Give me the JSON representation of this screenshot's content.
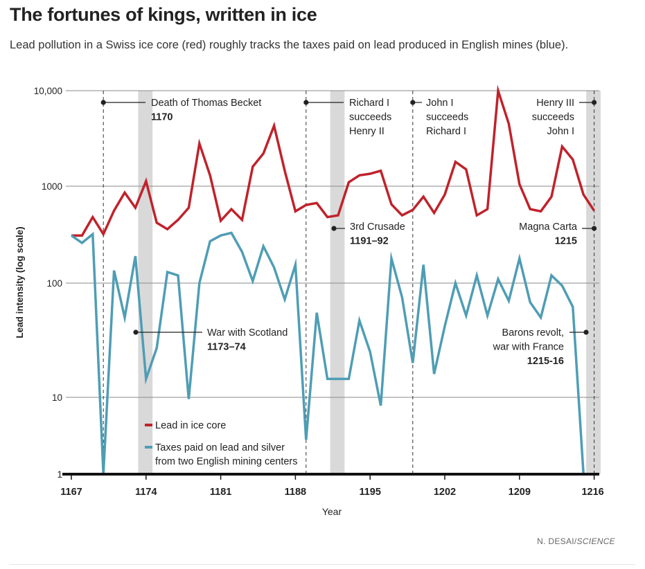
{
  "header": {
    "title": "The fortunes of kings, written in ice",
    "subtitle": "Lead pollution in a Swiss ice core (red) roughly tracks the taxes paid on lead produced in English mines (blue)."
  },
  "credit": {
    "author": "N. DESAI/",
    "publication": "SCIENCE"
  },
  "colors": {
    "lead": "#c0222b",
    "taxes": "#4f9db5",
    "shade": "#d9d9d9"
  },
  "chart_data": {
    "type": "line",
    "xlabel": "Year",
    "ylabel": "Lead intensity (log scale)",
    "yscale": "log",
    "ylim": [
      1,
      10000
    ],
    "xlim": [
      1167,
      1216.3
    ],
    "x_ticks": [
      1167,
      1174,
      1181,
      1188,
      1195,
      1202,
      1209,
      1216
    ],
    "y_ticks": [
      {
        "value": 1,
        "label": "1"
      },
      {
        "value": 10,
        "label": "10"
      },
      {
        "value": 100,
        "label": "100"
      },
      {
        "value": 1000,
        "label": "1000"
      },
      {
        "value": 10000,
        "label": "10,000"
      }
    ],
    "grid": true,
    "series": [
      {
        "name": "Lead in ice core",
        "color": "#c0222b",
        "x": [
          1167,
          1168,
          1169,
          1170,
          1171,
          1172,
          1173,
          1174,
          1175,
          1176,
          1177,
          1178,
          1179,
          1180,
          1181,
          1182,
          1183,
          1184,
          1185,
          1186,
          1187,
          1188,
          1189,
          1190,
          1191,
          1192,
          1193,
          1194,
          1195,
          1196,
          1197,
          1198,
          1199,
          1200,
          1201,
          1202,
          1203,
          1204,
          1205,
          1206,
          1207,
          1208,
          1209,
          1210,
          1211,
          1212,
          1213,
          1214,
          1215,
          1216
        ],
        "values": [
          310,
          310,
          480,
          320,
          560,
          860,
          600,
          1130,
          420,
          360,
          450,
          600,
          2800,
          1300,
          440,
          580,
          450,
          1600,
          2200,
          4300,
          1450,
          550,
          640,
          670,
          480,
          500,
          1100,
          1300,
          1350,
          1450,
          650,
          500,
          570,
          780,
          530,
          820,
          1800,
          1500,
          500,
          580,
          10000,
          4500,
          1050,
          580,
          550,
          780,
          2600,
          1900,
          820,
          560
        ]
      },
      {
        "name": "Taxes paid on lead and silver from two English mining centers",
        "color": "#4f9db5",
        "x": [
          1167,
          1168,
          1169,
          1170,
          1171,
          1172,
          1173,
          1174,
          1175,
          1176,
          1177,
          1178,
          1179,
          1180,
          1181,
          1182,
          1183,
          1184,
          1185,
          1186,
          1187,
          1188,
          1189,
          1190,
          1191,
          1192,
          1193,
          1194,
          1195,
          1196,
          1197,
          1198,
          1199,
          1200,
          1201,
          1202,
          1203,
          1204,
          1205,
          1206,
          1207,
          1208,
          1209,
          1210,
          1211,
          1212,
          1213,
          1214,
          1215
        ],
        "values": [
          310,
          260,
          320,
          1,
          135,
          50,
          190,
          14.5,
          27,
          130,
          120,
          9.5,
          100,
          270,
          310,
          330,
          210,
          105,
          240,
          145,
          72,
          155,
          2.8,
          55,
          14.5,
          14.5,
          14.5,
          47,
          25,
          7.8,
          180,
          75,
          20,
          155,
          16,
          42,
          100,
          52,
          120,
          52,
          110,
          70,
          180,
          68,
          50,
          120,
          95,
          62,
          1
        ]
      }
    ],
    "shaded_periods": [
      [
        1173,
        1174
      ],
      [
        1191,
        1192
      ],
      [
        1215,
        1216
      ]
    ],
    "events": [
      {
        "year": 1170,
        "lines": [
          "Death of Thomas Becket"
        ],
        "date": "1170"
      },
      {
        "year": 1189,
        "lines": [
          "Richard I",
          "succeeds",
          "Henry II"
        ],
        "date": ""
      },
      {
        "year": 1199,
        "lines": [
          "John I",
          "succeeds",
          "Richard I"
        ],
        "date": ""
      },
      {
        "year": 1216,
        "lines": [
          "Henry III",
          "succeeds",
          "John I"
        ],
        "date": ""
      }
    ],
    "period_labels": [
      {
        "lines": [
          "3rd Crusade"
        ],
        "date": "1191–92"
      },
      {
        "lines": [
          "Magna Carta"
        ],
        "date": "1215"
      },
      {
        "lines": [
          "War with Scotland"
        ],
        "date": "1173–74"
      },
      {
        "lines": [
          "Barons revolt,",
          "war with France"
        ],
        "date": "1215-16"
      }
    ]
  }
}
